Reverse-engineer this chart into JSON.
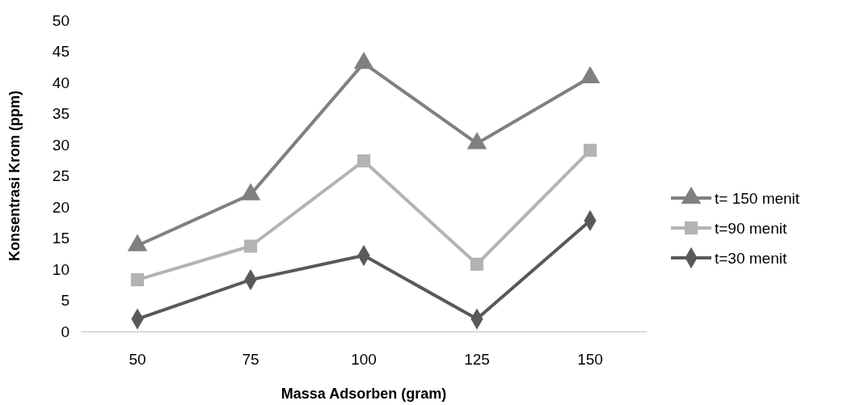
{
  "chart_data": {
    "type": "line",
    "xlabel": "Massa Adsorben (gram)",
    "ylabel": "Konsentrasi Krom (ppm)",
    "categories": [
      "50",
      "75",
      "100",
      "125",
      "150"
    ],
    "ylim": [
      0,
      50
    ],
    "yticks": [
      0,
      5,
      10,
      15,
      20,
      25,
      30,
      35,
      40,
      45,
      50
    ],
    "grid": false,
    "legend": "right",
    "series": [
      {
        "name": "t= 150 menit",
        "color": "#808080",
        "marker": "triangle",
        "values": [
          13.8,
          22,
          43.1,
          30.2,
          40.8
        ]
      },
      {
        "name": "t=90 menit",
        "color": "#b3b3b3",
        "marker": "square",
        "values": [
          8.3,
          13.7,
          27.4,
          10.8,
          29.1
        ]
      },
      {
        "name": "t=30 menit",
        "color": "#595959",
        "marker": "diamond",
        "values": [
          2,
          8.3,
          12.2,
          2,
          17.8
        ]
      }
    ]
  }
}
